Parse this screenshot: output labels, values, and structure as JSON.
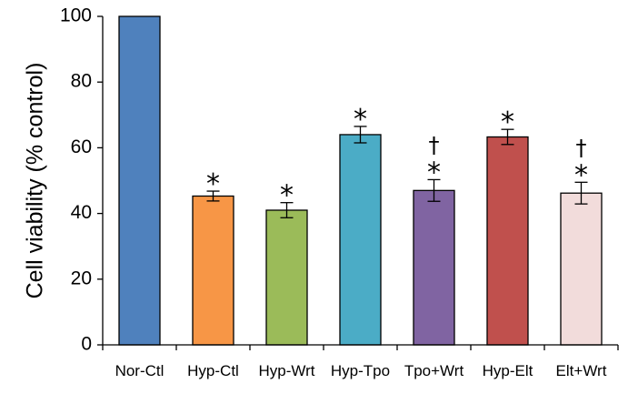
{
  "chart_data": {
    "type": "bar",
    "categories": [
      "Nor-Ctl",
      "Hyp-Ctl",
      "Hyp-Wrt",
      "Hyp-Tpo",
      "Tpo+Wrt",
      "Hyp-Elt",
      "Elt+Wrt"
    ],
    "values": [
      100,
      45.3,
      41.0,
      64.0,
      47.0,
      63.3,
      46.2
    ],
    "errors": [
      0,
      1.5,
      2.3,
      2.5,
      3.3,
      2.3,
      3.3
    ],
    "colors": [
      "#4f81bd",
      "#f79646",
      "#9bbb59",
      "#4bacc6",
      "#8064a2",
      "#c0504d",
      "#f2dcdb"
    ],
    "annotations": [
      {
        "star": "",
        "dagger": ""
      },
      {
        "star": "*",
        "dagger": ""
      },
      {
        "star": "*",
        "dagger": ""
      },
      {
        "star": "*",
        "dagger": ""
      },
      {
        "star": "*",
        "dagger": "†"
      },
      {
        "star": "*",
        "dagger": ""
      },
      {
        "star": "*",
        "dagger": "†"
      }
    ],
    "title": "",
    "xlabel": "",
    "ylabel": "Cell viability (% control)",
    "ylim": [
      0,
      100
    ],
    "yticks": [
      0,
      20,
      40,
      60,
      80,
      100
    ],
    "grid": false,
    "legend": "none"
  }
}
